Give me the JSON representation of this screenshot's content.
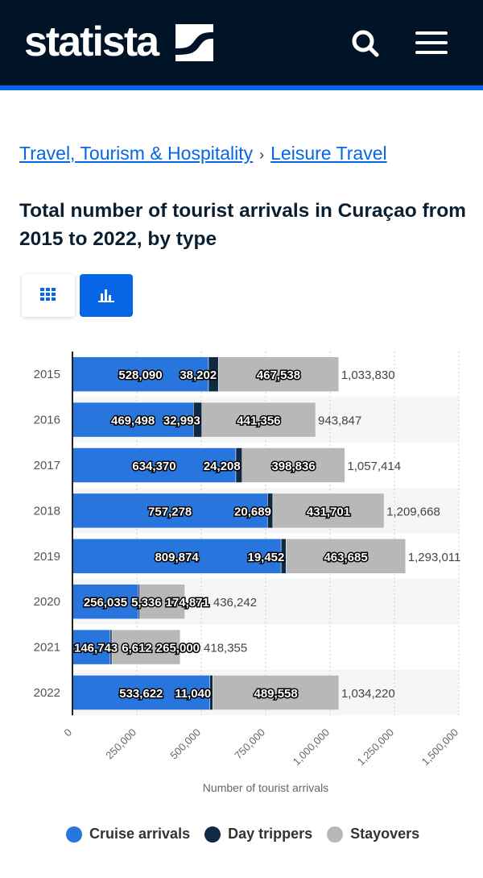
{
  "header": {
    "logo": "statista",
    "icons": [
      "search-icon",
      "menu-icon"
    ]
  },
  "breadcrumb": [
    {
      "label": "Travel, Tourism & Hospitality"
    },
    {
      "label": "Leisure Travel"
    }
  ],
  "breadcrumb_separator": "›",
  "title": "Total number of tourist arrivals in Curaçao from 2015 to 2022, by type",
  "view_toggle": {
    "icons": [
      "table-icon",
      "bar-chart-icon"
    ],
    "active": "bar-chart-icon"
  },
  "colors": {
    "cruise": "#2876dd",
    "day": "#0f2a45",
    "stay": "#b8b8b8",
    "header": "#001327",
    "accent": "#0666e5"
  },
  "chart_data": {
    "type": "bar",
    "orientation": "horizontal",
    "stacked": true,
    "categories": [
      "2015",
      "2016",
      "2017",
      "2018",
      "2019",
      "2020",
      "2021",
      "2022"
    ],
    "series": [
      {
        "name": "Cruise arrivals",
        "values": [
          528090,
          469498,
          634370,
          757278,
          809874,
          256035,
          146743,
          533622
        ]
      },
      {
        "name": "Day trippers",
        "values": [
          38202,
          32993,
          24208,
          20689,
          19452,
          5336,
          6612,
          11040
        ]
      },
      {
        "name": "Stayovers",
        "values": [
          467538,
          441356,
          398836,
          431701,
          463685,
          174871,
          265000,
          489558
        ]
      }
    ],
    "totals": [
      1033830,
      943847,
      1057414,
      1209668,
      1293011,
      436242,
      418355,
      1034220
    ],
    "xlabel": "Number of tourist arrivals",
    "ylabel": "",
    "xlim": [
      0,
      1500000
    ],
    "xticks": [
      "0",
      "250,000",
      "500,000",
      "750,000",
      "1,000,000",
      "1,250,000",
      "1,500,000"
    ],
    "grid": true,
    "legend": "bottom"
  }
}
